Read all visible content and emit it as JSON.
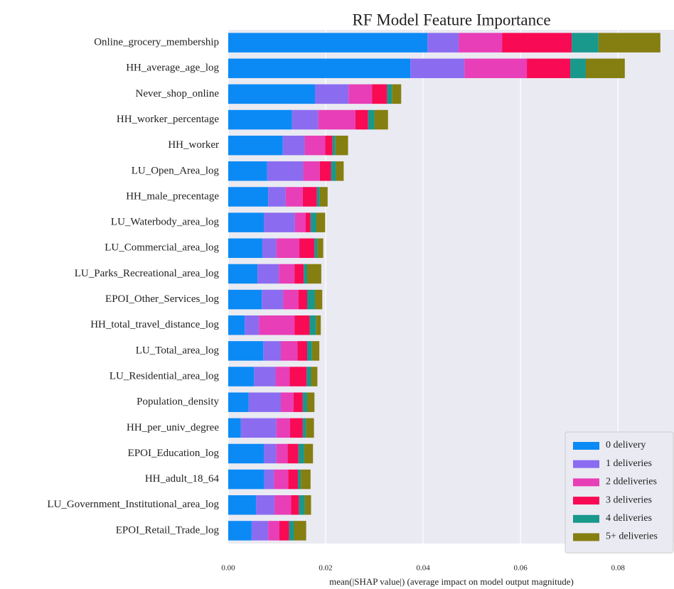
{
  "chart_data": {
    "type": "stacked_barh",
    "title": "RF Model Feature Importance",
    "x_label": "mean(|SHAP value|) (average impact on model output magnitude)",
    "categories": [
      "Online_grocery_membership",
      "HH_average_age_log",
      "Never_shop_online",
      "HH_worker_percentage",
      "HH_worker",
      "LU_Open_Area_log",
      "HH_male_precentage",
      "LU_Waterbody_area_log",
      "LU_Commercial_area_log",
      "LU_Parks_Recreational_area_log",
      "EPOI_Other_Services_log",
      "HH_total_travel_distance_log",
      "LU_Total_area_log",
      "LU_Residential_area_log",
      "Population_density",
      "HH_per_univ_degree",
      "EPOI_Education_log",
      "HH_adult_18_64",
      "LU_Government_Institutional_area_log",
      "EPOI_Retail_Trade_log"
    ],
    "series": [
      {
        "name": "0 delivery",
        "color": "#0b8af5",
        "values": [
          0.0409,
          0.0374,
          0.0178,
          0.0131,
          0.0112,
          0.008,
          0.0082,
          0.0073,
          0.007,
          0.006,
          0.0069,
          0.0034,
          0.0072,
          0.0053,
          0.0042,
          0.0026,
          0.0073,
          0.0074,
          0.0057,
          0.0048
        ]
      },
      {
        "name": "1 deliveries",
        "color": "#8b6cf0",
        "values": [
          0.0064,
          0.0111,
          0.0069,
          0.0054,
          0.0045,
          0.0074,
          0.0036,
          0.0064,
          0.0029,
          0.0044,
          0.0044,
          0.0029,
          0.0036,
          0.0044,
          0.0066,
          0.0073,
          0.0026,
          0.002,
          0.0038,
          0.0034
        ]
      },
      {
        "name": "2 ddeliveries",
        "color": "#e83eb7",
        "values": [
          0.0089,
          0.0128,
          0.0048,
          0.0076,
          0.0042,
          0.0034,
          0.0035,
          0.0022,
          0.0047,
          0.0032,
          0.0031,
          0.0073,
          0.0034,
          0.0029,
          0.0026,
          0.0028,
          0.0023,
          0.0029,
          0.0034,
          0.0023
        ]
      },
      {
        "name": "3 deliveries",
        "color": "#f80a55",
        "values": [
          0.0143,
          0.0089,
          0.0031,
          0.0026,
          0.0015,
          0.0023,
          0.0029,
          0.001,
          0.0031,
          0.0019,
          0.0018,
          0.0031,
          0.002,
          0.0035,
          0.0019,
          0.0026,
          0.0022,
          0.002,
          0.0016,
          0.002
        ]
      },
      {
        "name": "4 deliveries",
        "color": "#19988c",
        "values": [
          0.0055,
          0.0032,
          0.001,
          0.0013,
          0.0006,
          0.001,
          0.0006,
          0.0012,
          0.0006,
          0.0007,
          0.0016,
          0.0013,
          0.001,
          0.0009,
          0.0009,
          0.0007,
          0.0012,
          0.0006,
          0.0012,
          0.001
        ]
      },
      {
        "name": "5+ deliveries",
        "color": "#857e11",
        "values": [
          0.0127,
          0.008,
          0.0019,
          0.0028,
          0.0026,
          0.0016,
          0.0016,
          0.0018,
          0.0012,
          0.0029,
          0.0015,
          0.001,
          0.0015,
          0.0013,
          0.0015,
          0.0016,
          0.0018,
          0.002,
          0.0013,
          0.0025
        ]
      }
    ],
    "xlim": [
      0,
      0.0915
    ],
    "xticks": [
      {
        "value": 0,
        "label": "0.00"
      },
      {
        "value": 0.02,
        "label": "0.02"
      },
      {
        "value": 0.04,
        "label": "0.04"
      },
      {
        "value": 0.06,
        "label": "0.06"
      },
      {
        "value": 0.08,
        "label": "0.08"
      }
    ],
    "grid": true,
    "legend": "lower right",
    "background": "#eaeaf2"
  }
}
